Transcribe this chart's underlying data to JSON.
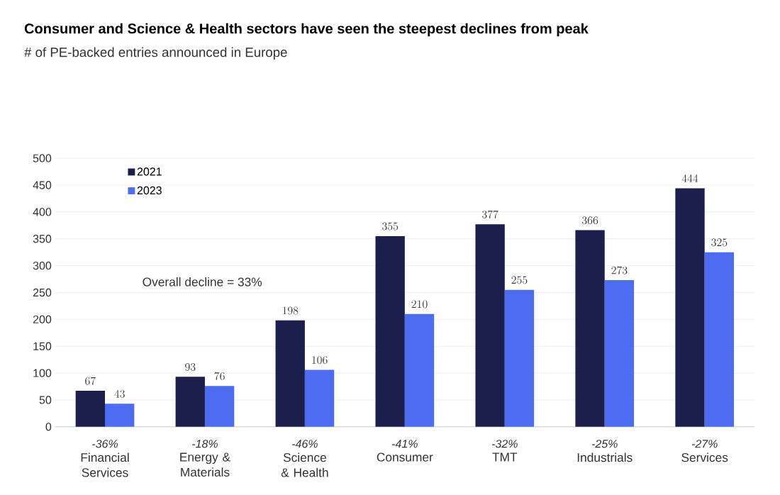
{
  "chart_data": {
    "type": "bar",
    "title": "Consumer and Science & Health sectors have seen the steepest declines from peak",
    "subtitle": "# of PE-backed entries announced in Europe",
    "categories": [
      "Financial Services",
      "Energy & Materials",
      "Science & Health",
      "Consumer",
      "TMT",
      "Industrials",
      "Services"
    ],
    "series": [
      {
        "name": "2021",
        "color": "#1c1e4b",
        "values": [
          67,
          93,
          198,
          355,
          377,
          366,
          444
        ]
      },
      {
        "name": "2023",
        "color": "#4e6cf2",
        "values": [
          43,
          76,
          106,
          210,
          255,
          273,
          325
        ]
      }
    ],
    "ylim": [
      0,
      500
    ],
    "yticks": [
      0,
      50,
      100,
      150,
      200,
      250,
      300,
      350,
      400,
      450,
      500
    ],
    "grid": "y",
    "legend": "top left",
    "data_labels": true,
    "annotations": [
      "Overall decline = 33%",
      "-36%",
      "-18%",
      "-46%",
      "-41%",
      "-32%",
      "-25%",
      "-27%"
    ]
  }
}
